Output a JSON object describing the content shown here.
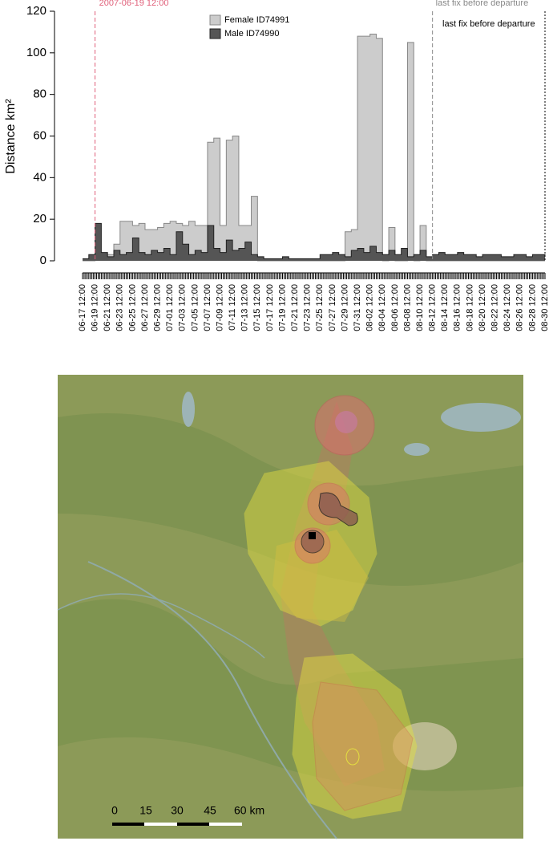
{
  "chart_data": {
    "type": "step-area",
    "ylabel": "Distance km²",
    "ylim": [
      0,
      120
    ],
    "yticks": [
      0,
      20,
      40,
      60,
      80,
      100,
      120
    ],
    "categories": [
      "06-17 12:00",
      null,
      "06-19 12:00",
      null,
      "06-21 12:00",
      null,
      "06-23 12:00",
      null,
      "06-25 12:00",
      null,
      "06-27 12:00",
      null,
      "06-29 12:00",
      null,
      "07-01 12:00",
      null,
      "07-03 12:00",
      null,
      "07-05 12:00",
      null,
      "07-07 12:00",
      null,
      "07-09 12:00",
      null,
      "07-11 12:00",
      null,
      "07-13 12:00",
      null,
      "07-15 12:00",
      null,
      "07-17 12:00",
      null,
      "07-19 12:00",
      null,
      "07-21 12:00",
      null,
      "07-23 12:00",
      null,
      "07-25 12:00",
      null,
      "07-27 12:00",
      null,
      "07-29 12:00",
      null,
      "07-31 12:00",
      null,
      "08-02 12:00",
      null,
      "08-04 12:00",
      null,
      "08-06 12:00",
      null,
      "08-08 12:00",
      null,
      "08-10 12:00",
      null,
      "08-12 12:00",
      null,
      "08-14 12:00",
      null,
      "08-16 12:00",
      null,
      "08-18 12:00",
      null,
      "08-20 12:00",
      null,
      "08-22 12:00",
      null,
      "08-24 12:00",
      null,
      "08-26 12:00",
      null,
      "08-28 12:00",
      null,
      "08-30 12:00"
    ],
    "series": [
      {
        "name": "Female ID74991",
        "color": "#cccccc",
        "edge": "#888888",
        "values": [
          0,
          0,
          3,
          3,
          3,
          8,
          19,
          19,
          17,
          18,
          15,
          15,
          16,
          18,
          19,
          18,
          17,
          19,
          17,
          17,
          57,
          59,
          17,
          58,
          60,
          17,
          17,
          31,
          0,
          0,
          0,
          0,
          0,
          0,
          0,
          0,
          0,
          0,
          0,
          0,
          0,
          0,
          14,
          15,
          108,
          108,
          109,
          107,
          0,
          16,
          0,
          0,
          105,
          0,
          17,
          0,
          0,
          0,
          0,
          0,
          0,
          0,
          0,
          0,
          0,
          0,
          0,
          0,
          0,
          0,
          0,
          0,
          0,
          0,
          0
        ]
      },
      {
        "name": "Male ID74990",
        "color": "#555555",
        "edge": "#222222",
        "values": [
          1,
          3,
          18,
          4,
          2,
          5,
          3,
          4,
          11,
          4,
          3,
          5,
          4,
          6,
          3,
          14,
          8,
          3,
          5,
          4,
          17,
          6,
          4,
          10,
          5,
          6,
          9,
          3,
          2,
          1,
          1,
          1,
          2,
          1,
          1,
          1,
          1,
          1,
          3,
          3,
          4,
          3,
          2,
          5,
          6,
          4,
          7,
          4,
          3,
          5,
          3,
          6,
          2,
          3,
          5,
          2,
          3,
          4,
          3,
          3,
          4,
          3,
          3,
          2,
          3,
          3,
          3,
          2,
          2,
          3,
          3,
          2,
          3,
          3,
          2
        ]
      }
    ],
    "annotations": [
      {
        "text": "2007-06-19 12:00",
        "x": "06-19 12:00",
        "color": "#e0607a"
      },
      {
        "text": "last fix before departure",
        "x": "08-12 12:00",
        "color": "#888888"
      },
      {
        "text": "last fix before departure",
        "x": "08-30 12:00",
        "color": "#000000"
      }
    ]
  },
  "map": {
    "scale_labels": [
      "0",
      "15",
      "30",
      "45",
      "60 km"
    ]
  }
}
